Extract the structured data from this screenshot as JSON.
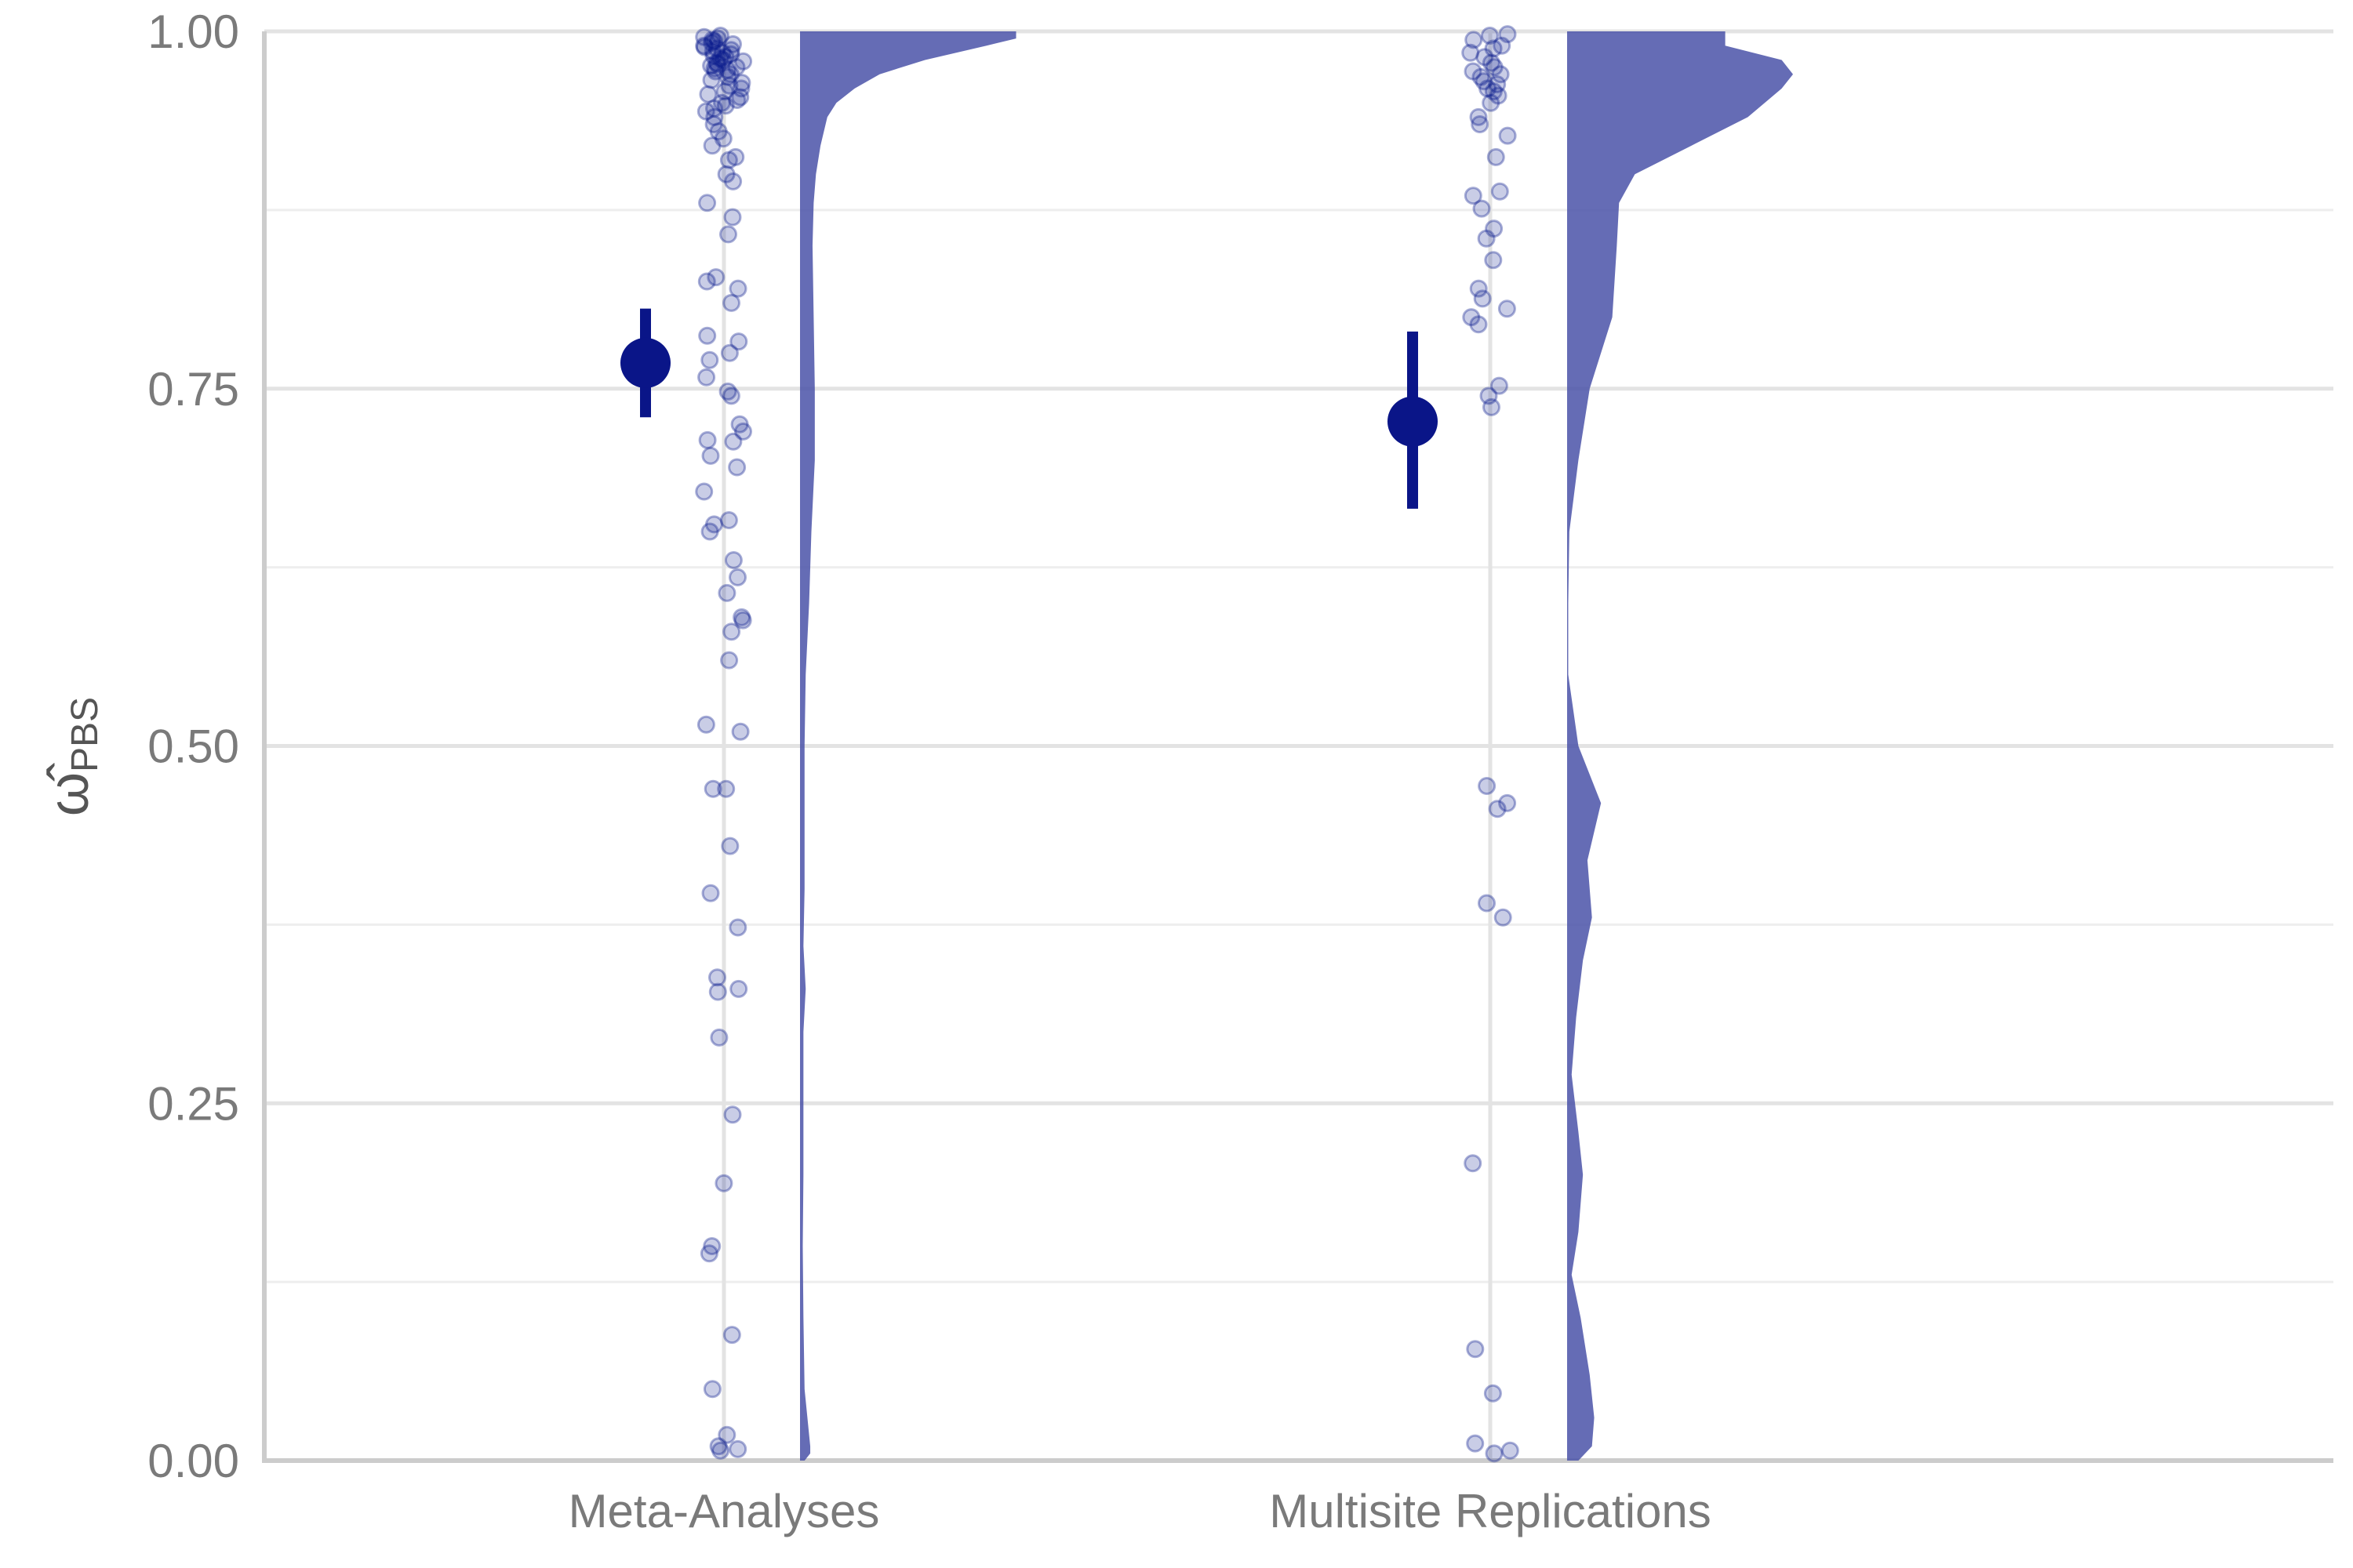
{
  "chart_data": {
    "type": "scatter",
    "ylabel": "ω̂PBS",
    "ylabel_main": "ω̂",
    "ylabel_sub": "PBS",
    "ylim": [
      0,
      1
    ],
    "yticks": [
      0.0,
      0.25,
      0.5,
      0.75,
      1.0
    ],
    "ytick_labels": [
      "0.00",
      "0.25",
      "0.50",
      "0.75",
      "1.00"
    ],
    "grid": true,
    "legend": "none",
    "categories": [
      "Meta-Analyses",
      "Multisite Replications"
    ],
    "colors": {
      "points": "#0a1a8c",
      "violin": "#4a52a8",
      "summary": "#0a1588",
      "grid_major": "#e3e3e3",
      "grid_minor": "#eeeeee",
      "axis": "#cccccc"
    },
    "series": [
      {
        "category": "Meta-Analyses",
        "summary": {
          "estimate": 0.768,
          "lower": 0.73,
          "upper": 0.806
        },
        "points": [
          0.997,
          0.996,
          0.995,
          0.994,
          0.993,
          0.992,
          0.991,
          0.99,
          0.989,
          0.988,
          0.987,
          0.986,
          0.985,
          0.984,
          0.983,
          0.982,
          0.981,
          0.98,
          0.979,
          0.978,
          0.977,
          0.976,
          0.975,
          0.974,
          0.973,
          0.972,
          0.97,
          0.968,
          0.966,
          0.964,
          0.962,
          0.96,
          0.958,
          0.956,
          0.954,
          0.952,
          0.95,
          0.948,
          0.946,
          0.944,
          0.94,
          0.935,
          0.93,
          0.925,
          0.92,
          0.912,
          0.91,
          0.9,
          0.895,
          0.88,
          0.87,
          0.858,
          0.828,
          0.825,
          0.82,
          0.81,
          0.787,
          0.783,
          0.775,
          0.77,
          0.758,
          0.748,
          0.745,
          0.725,
          0.72,
          0.714,
          0.713,
          0.703,
          0.695,
          0.678,
          0.658,
          0.655,
          0.65,
          0.63,
          0.618,
          0.607,
          0.59,
          0.588,
          0.58,
          0.56,
          0.515,
          0.51,
          0.47,
          0.47,
          0.43,
          0.397,
          0.373,
          0.338,
          0.33,
          0.328,
          0.296,
          0.242,
          0.194,
          0.15,
          0.145,
          0.088,
          0.05,
          0.018,
          0.01,
          0.008,
          0.007
        ],
        "density": [
          [
            0.0,
            0.02
          ],
          [
            0.005,
            0.045
          ],
          [
            0.01,
            0.045
          ],
          [
            0.05,
            0.02
          ],
          [
            0.1,
            0.015
          ],
          [
            0.15,
            0.012
          ],
          [
            0.2,
            0.015
          ],
          [
            0.25,
            0.015
          ],
          [
            0.3,
            0.015
          ],
          [
            0.33,
            0.025
          ],
          [
            0.36,
            0.015
          ],
          [
            0.4,
            0.02
          ],
          [
            0.45,
            0.02
          ],
          [
            0.5,
            0.02
          ],
          [
            0.55,
            0.025
          ],
          [
            0.6,
            0.04
          ],
          [
            0.65,
            0.05
          ],
          [
            0.7,
            0.065
          ],
          [
            0.75,
            0.065
          ],
          [
            0.8,
            0.06
          ],
          [
            0.85,
            0.055
          ],
          [
            0.88,
            0.06
          ],
          [
            0.9,
            0.07
          ],
          [
            0.92,
            0.09
          ],
          [
            0.94,
            0.12
          ],
          [
            0.95,
            0.16
          ],
          [
            0.96,
            0.24
          ],
          [
            0.97,
            0.35
          ],
          [
            0.98,
            0.55
          ],
          [
            0.99,
            0.82
          ],
          [
            0.995,
            0.95
          ],
          [
            1.0,
            0.95
          ]
        ]
      },
      {
        "category": "Multisite Replications",
        "summary": {
          "estimate": 0.727,
          "lower": 0.666,
          "upper": 0.79
        },
        "points": [
          0.998,
          0.997,
          0.994,
          0.99,
          0.988,
          0.985,
          0.982,
          0.978,
          0.975,
          0.972,
          0.97,
          0.968,
          0.965,
          0.963,
          0.96,
          0.958,
          0.955,
          0.95,
          0.94,
          0.935,
          0.927,
          0.912,
          0.888,
          0.885,
          0.876,
          0.862,
          0.855,
          0.84,
          0.82,
          0.813,
          0.806,
          0.8,
          0.795,
          0.752,
          0.745,
          0.737,
          0.472,
          0.46,
          0.456,
          0.39,
          0.38,
          0.208,
          0.078,
          0.047,
          0.012,
          0.007,
          0.005
        ],
        "density": [
          [
            0.0,
            0.05
          ],
          [
            0.01,
            0.11
          ],
          [
            0.03,
            0.12
          ],
          [
            0.06,
            0.1
          ],
          [
            0.1,
            0.06
          ],
          [
            0.13,
            0.02
          ],
          [
            0.16,
            0.05
          ],
          [
            0.2,
            0.07
          ],
          [
            0.23,
            0.05
          ],
          [
            0.27,
            0.02
          ],
          [
            0.31,
            0.04
          ],
          [
            0.35,
            0.07
          ],
          [
            0.38,
            0.11
          ],
          [
            0.42,
            0.09
          ],
          [
            0.46,
            0.15
          ],
          [
            0.5,
            0.05
          ],
          [
            0.55,
            0.005
          ],
          [
            0.6,
            0.005
          ],
          [
            0.65,
            0.01
          ],
          [
            0.7,
            0.05
          ],
          [
            0.75,
            0.1
          ],
          [
            0.8,
            0.2
          ],
          [
            0.85,
            0.22
          ],
          [
            0.88,
            0.23
          ],
          [
            0.9,
            0.3
          ],
          [
            0.92,
            0.55
          ],
          [
            0.94,
            0.8
          ],
          [
            0.96,
            0.95
          ],
          [
            0.97,
            1.0
          ],
          [
            0.98,
            0.95
          ],
          [
            0.99,
            0.7
          ],
          [
            1.0,
            0.7
          ]
        ]
      }
    ]
  }
}
